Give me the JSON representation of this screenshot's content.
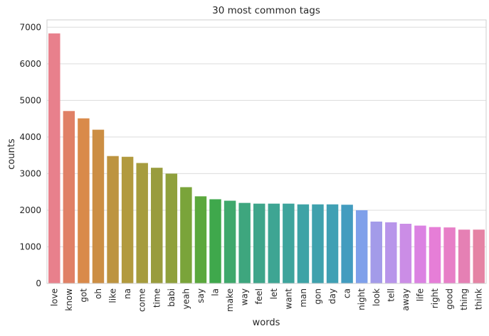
{
  "chart_data": {
    "type": "bar",
    "title": "30 most common tags",
    "xlabel": "words",
    "ylabel": "counts",
    "ylim": [
      0,
      7200
    ],
    "yticks": [
      0,
      1000,
      2000,
      3000,
      4000,
      5000,
      6000,
      7000
    ],
    "grid": true,
    "categories": [
      "love",
      "know",
      "got",
      "oh",
      "like",
      "na",
      "come",
      "time",
      "babi",
      "yeah",
      "say",
      "la",
      "make",
      "way",
      "feel",
      "let",
      "want",
      "man",
      "gon",
      "day",
      "ca",
      "night",
      "look",
      "tell",
      "away",
      "life",
      "right",
      "good",
      "thing",
      "think"
    ],
    "values": [
      6830,
      4710,
      4510,
      4200,
      3480,
      3460,
      3290,
      3160,
      3000,
      2630,
      2380,
      2300,
      2260,
      2200,
      2180,
      2180,
      2180,
      2160,
      2160,
      2160,
      2150,
      2000,
      1690,
      1670,
      1630,
      1580,
      1540,
      1530,
      1470,
      1470
    ],
    "colors": [
      "#e8808c",
      "#e08066",
      "#d98a4a",
      "#cc8e44",
      "#bd9440",
      "#b29a3e",
      "#a69c3e",
      "#999c3d",
      "#8fa03c",
      "#7aa43a",
      "#5ba83d",
      "#3fa84c",
      "#3fa86c",
      "#3ea67e",
      "#3ea58a",
      "#3ea593",
      "#3ea49c",
      "#3ea3a6",
      "#3fa1ad",
      "#40a0b4",
      "#439cbf",
      "#7fa0ea",
      "#a39be9",
      "#b895ea",
      "#cb8de6",
      "#db82e2",
      "#e67ed7",
      "#e77fc7",
      "#e580b4",
      "#e583a4"
    ]
  }
}
